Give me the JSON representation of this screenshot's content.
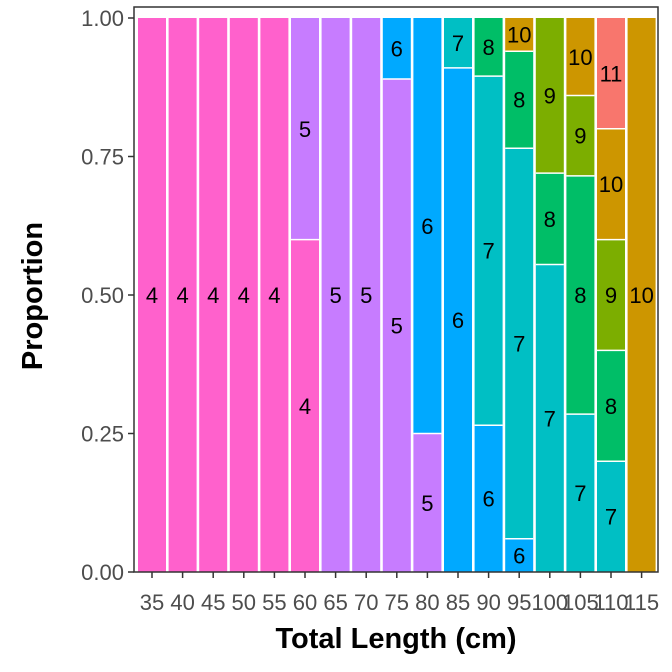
{
  "chart_data": {
    "type": "bar",
    "stacked": true,
    "normalized": true,
    "xlabel": "Total Length (cm)",
    "ylabel": "Proportion",
    "ylim": [
      0,
      1
    ],
    "yticks": [
      "0.00",
      "0.25",
      "0.50",
      "0.75",
      "1.00"
    ],
    "categories": [
      "35",
      "40",
      "45",
      "50",
      "55",
      "60",
      "65",
      "70",
      "75",
      "80",
      "85",
      "90",
      "95",
      "100",
      "105",
      "110",
      "115"
    ],
    "colors": {
      "4": "#FF61CC",
      "5": "#C77CFF",
      "6": "#00A9FF",
      "7": "#00BFC4",
      "8": "#00BE67",
      "9": "#7CAE00",
      "10": "#CD9600",
      "11": "#F8766D"
    },
    "bars": [
      {
        "category": "35",
        "segments": [
          {
            "label": "4",
            "value": 1.0
          }
        ]
      },
      {
        "category": "40",
        "segments": [
          {
            "label": "4",
            "value": 1.0
          }
        ]
      },
      {
        "category": "45",
        "segments": [
          {
            "label": "4",
            "value": 1.0
          }
        ]
      },
      {
        "category": "50",
        "segments": [
          {
            "label": "4",
            "value": 1.0
          }
        ]
      },
      {
        "category": "55",
        "segments": [
          {
            "label": "4",
            "value": 1.0
          }
        ]
      },
      {
        "category": "60",
        "segments": [
          {
            "label": "4",
            "value": 0.6
          },
          {
            "label": "5",
            "value": 0.4
          }
        ]
      },
      {
        "category": "65",
        "segments": [
          {
            "label": "5",
            "value": 1.0
          }
        ]
      },
      {
        "category": "70",
        "segments": [
          {
            "label": "5",
            "value": 1.0
          }
        ]
      },
      {
        "category": "75",
        "segments": [
          {
            "label": "5",
            "value": 0.89
          },
          {
            "label": "6",
            "value": 0.11
          }
        ]
      },
      {
        "category": "80",
        "segments": [
          {
            "label": "5",
            "value": 0.25
          },
          {
            "label": "6",
            "value": 0.75
          }
        ]
      },
      {
        "category": "85",
        "segments": [
          {
            "label": "6",
            "value": 0.91
          },
          {
            "label": "7",
            "value": 0.09
          }
        ]
      },
      {
        "category": "90",
        "segments": [
          {
            "label": "6",
            "value": 0.265
          },
          {
            "label": "7",
            "value": 0.63
          },
          {
            "label": "8",
            "value": 0.105
          }
        ]
      },
      {
        "category": "95",
        "segments": [
          {
            "label": "6",
            "value": 0.06
          },
          {
            "label": "7",
            "value": 0.705
          },
          {
            "label": "8",
            "value": 0.175
          },
          {
            "label": "10",
            "value": 0.06
          }
        ]
      },
      {
        "category": "100",
        "segments": [
          {
            "label": "7",
            "value": 0.555
          },
          {
            "label": "8",
            "value": 0.165
          },
          {
            "label": "9",
            "value": 0.28
          }
        ]
      },
      {
        "category": "105",
        "segments": [
          {
            "label": "7",
            "value": 0.285
          },
          {
            "label": "8",
            "value": 0.43
          },
          {
            "label": "9",
            "value": 0.145
          },
          {
            "label": "10",
            "value": 0.14
          }
        ]
      },
      {
        "category": "110",
        "segments": [
          {
            "label": "7",
            "value": 0.2
          },
          {
            "label": "8",
            "value": 0.2
          },
          {
            "label": "9",
            "value": 0.2
          },
          {
            "label": "10",
            "value": 0.2
          },
          {
            "label": "11",
            "value": 0.2
          }
        ]
      },
      {
        "category": "115",
        "segments": [
          {
            "label": "10",
            "value": 1.0
          }
        ]
      }
    ]
  }
}
